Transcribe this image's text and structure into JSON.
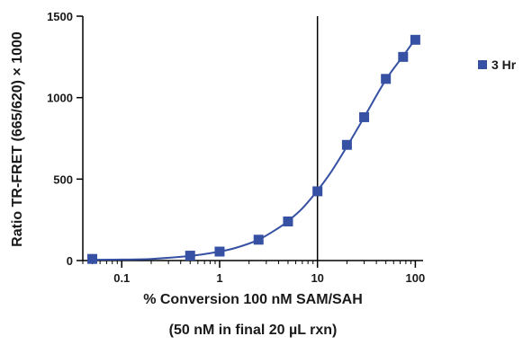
{
  "chart_data": {
    "type": "scatter",
    "title": "",
    "xlabel": "% Conversion 100 nM SAM/SAH",
    "xlabel_sub": "(50 nM  in final 20 µL rxn)",
    "ylabel": "Ratio TR-FRET (665/620) × 1000",
    "x_scale": "log",
    "xlim": [
      0.04,
      120
    ],
    "ylim": [
      0,
      1500
    ],
    "x_ticks": [
      0.1,
      1,
      10,
      100
    ],
    "x_tick_labels": [
      "0.1",
      "1",
      "10",
      "100"
    ],
    "y_ticks": [
      0,
      500,
      1000,
      1500
    ],
    "y_tick_labels": [
      "0",
      "500",
      "1000",
      "1500"
    ],
    "reference_line_x": 10,
    "grid": false,
    "legend_position": "right",
    "series": [
      {
        "name": "3 Hr",
        "color": "#3651a3",
        "marker": "square",
        "x": [
          0.05,
          0.5,
          1,
          2.5,
          5,
          10,
          20,
          30,
          50,
          75,
          100
        ],
        "y": [
          10,
          30,
          55,
          128,
          240,
          425,
          710,
          880,
          1115,
          1250,
          1355
        ]
      }
    ],
    "fit_curve": {
      "color": "#3651a3",
      "x": [
        0.05,
        0.1,
        0.2,
        0.5,
        1,
        1.5,
        2.5,
        4,
        5,
        7,
        10,
        14,
        20,
        30,
        50,
        75,
        100
      ],
      "y": [
        5,
        6,
        10,
        28,
        55,
        80,
        128,
        200,
        242,
        320,
        430,
        550,
        700,
        880,
        1110,
        1255,
        1360
      ]
    }
  }
}
